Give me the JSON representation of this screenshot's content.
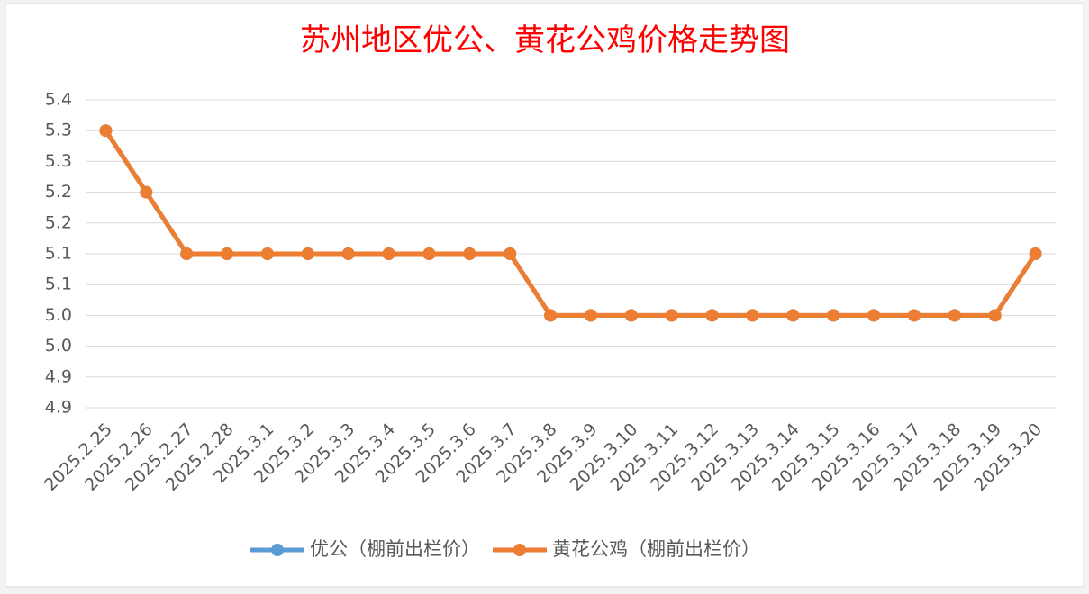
{
  "chart_data": {
    "type": "line",
    "title": "苏州地区优公、黄花公鸡价格走势图",
    "categories": [
      "2025.2.25",
      "2025.2.26",
      "2025.2.27",
      "2025.2.28",
      "2025.3.1",
      "2025.3.2",
      "2025.3.3",
      "2025.3.4",
      "2025.3.5",
      "2025.3.6",
      "2025.3.7",
      "2025.3.8",
      "2025.3.9",
      "2025.3.10",
      "2025.3.11",
      "2025.3.12",
      "2025.3.13",
      "2025.3.14",
      "2025.3.15",
      "2025.3.16",
      "2025.3.17",
      "2025.3.18",
      "2025.3.19",
      "2025.3.20"
    ],
    "series": [
      {
        "name": "优公（棚前出栏价）",
        "color": "#5b9bd5",
        "values": [
          5.3,
          5.2,
          5.1,
          5.1,
          5.1,
          5.1,
          5.1,
          5.1,
          5.1,
          5.1,
          5.1,
          5.0,
          5.0,
          5.0,
          5.0,
          5.0,
          5.0,
          5.0,
          5.0,
          5.0,
          5.0,
          5.0,
          5.0,
          5.1
        ]
      },
      {
        "name": "黄花公鸡（棚前出栏价）",
        "color": "#ed7d31",
        "values": [
          5.3,
          5.2,
          5.1,
          5.1,
          5.1,
          5.1,
          5.1,
          5.1,
          5.1,
          5.1,
          5.1,
          5.0,
          5.0,
          5.0,
          5.0,
          5.0,
          5.0,
          5.0,
          5.0,
          5.0,
          5.0,
          5.0,
          5.0,
          5.1
        ]
      }
    ],
    "ylim": [
      4.85,
      5.35
    ],
    "yticks": [
      {
        "value": 4.85,
        "label": "4.9"
      },
      {
        "value": 4.9,
        "label": "4.9"
      },
      {
        "value": 4.95,
        "label": "5.0"
      },
      {
        "value": 5.0,
        "label": "5.0"
      },
      {
        "value": 5.05,
        "label": "5.1"
      },
      {
        "value": 5.1,
        "label": "5.1"
      },
      {
        "value": 5.15,
        "label": "5.2"
      },
      {
        "value": 5.2,
        "label": "5.2"
      },
      {
        "value": 5.25,
        "label": "5.3"
      },
      {
        "value": 5.3,
        "label": "5.3"
      },
      {
        "value": 5.35,
        "label": "5.4"
      }
    ],
    "grid": true,
    "legend": "bottom",
    "title_color": "#ff0000"
  }
}
